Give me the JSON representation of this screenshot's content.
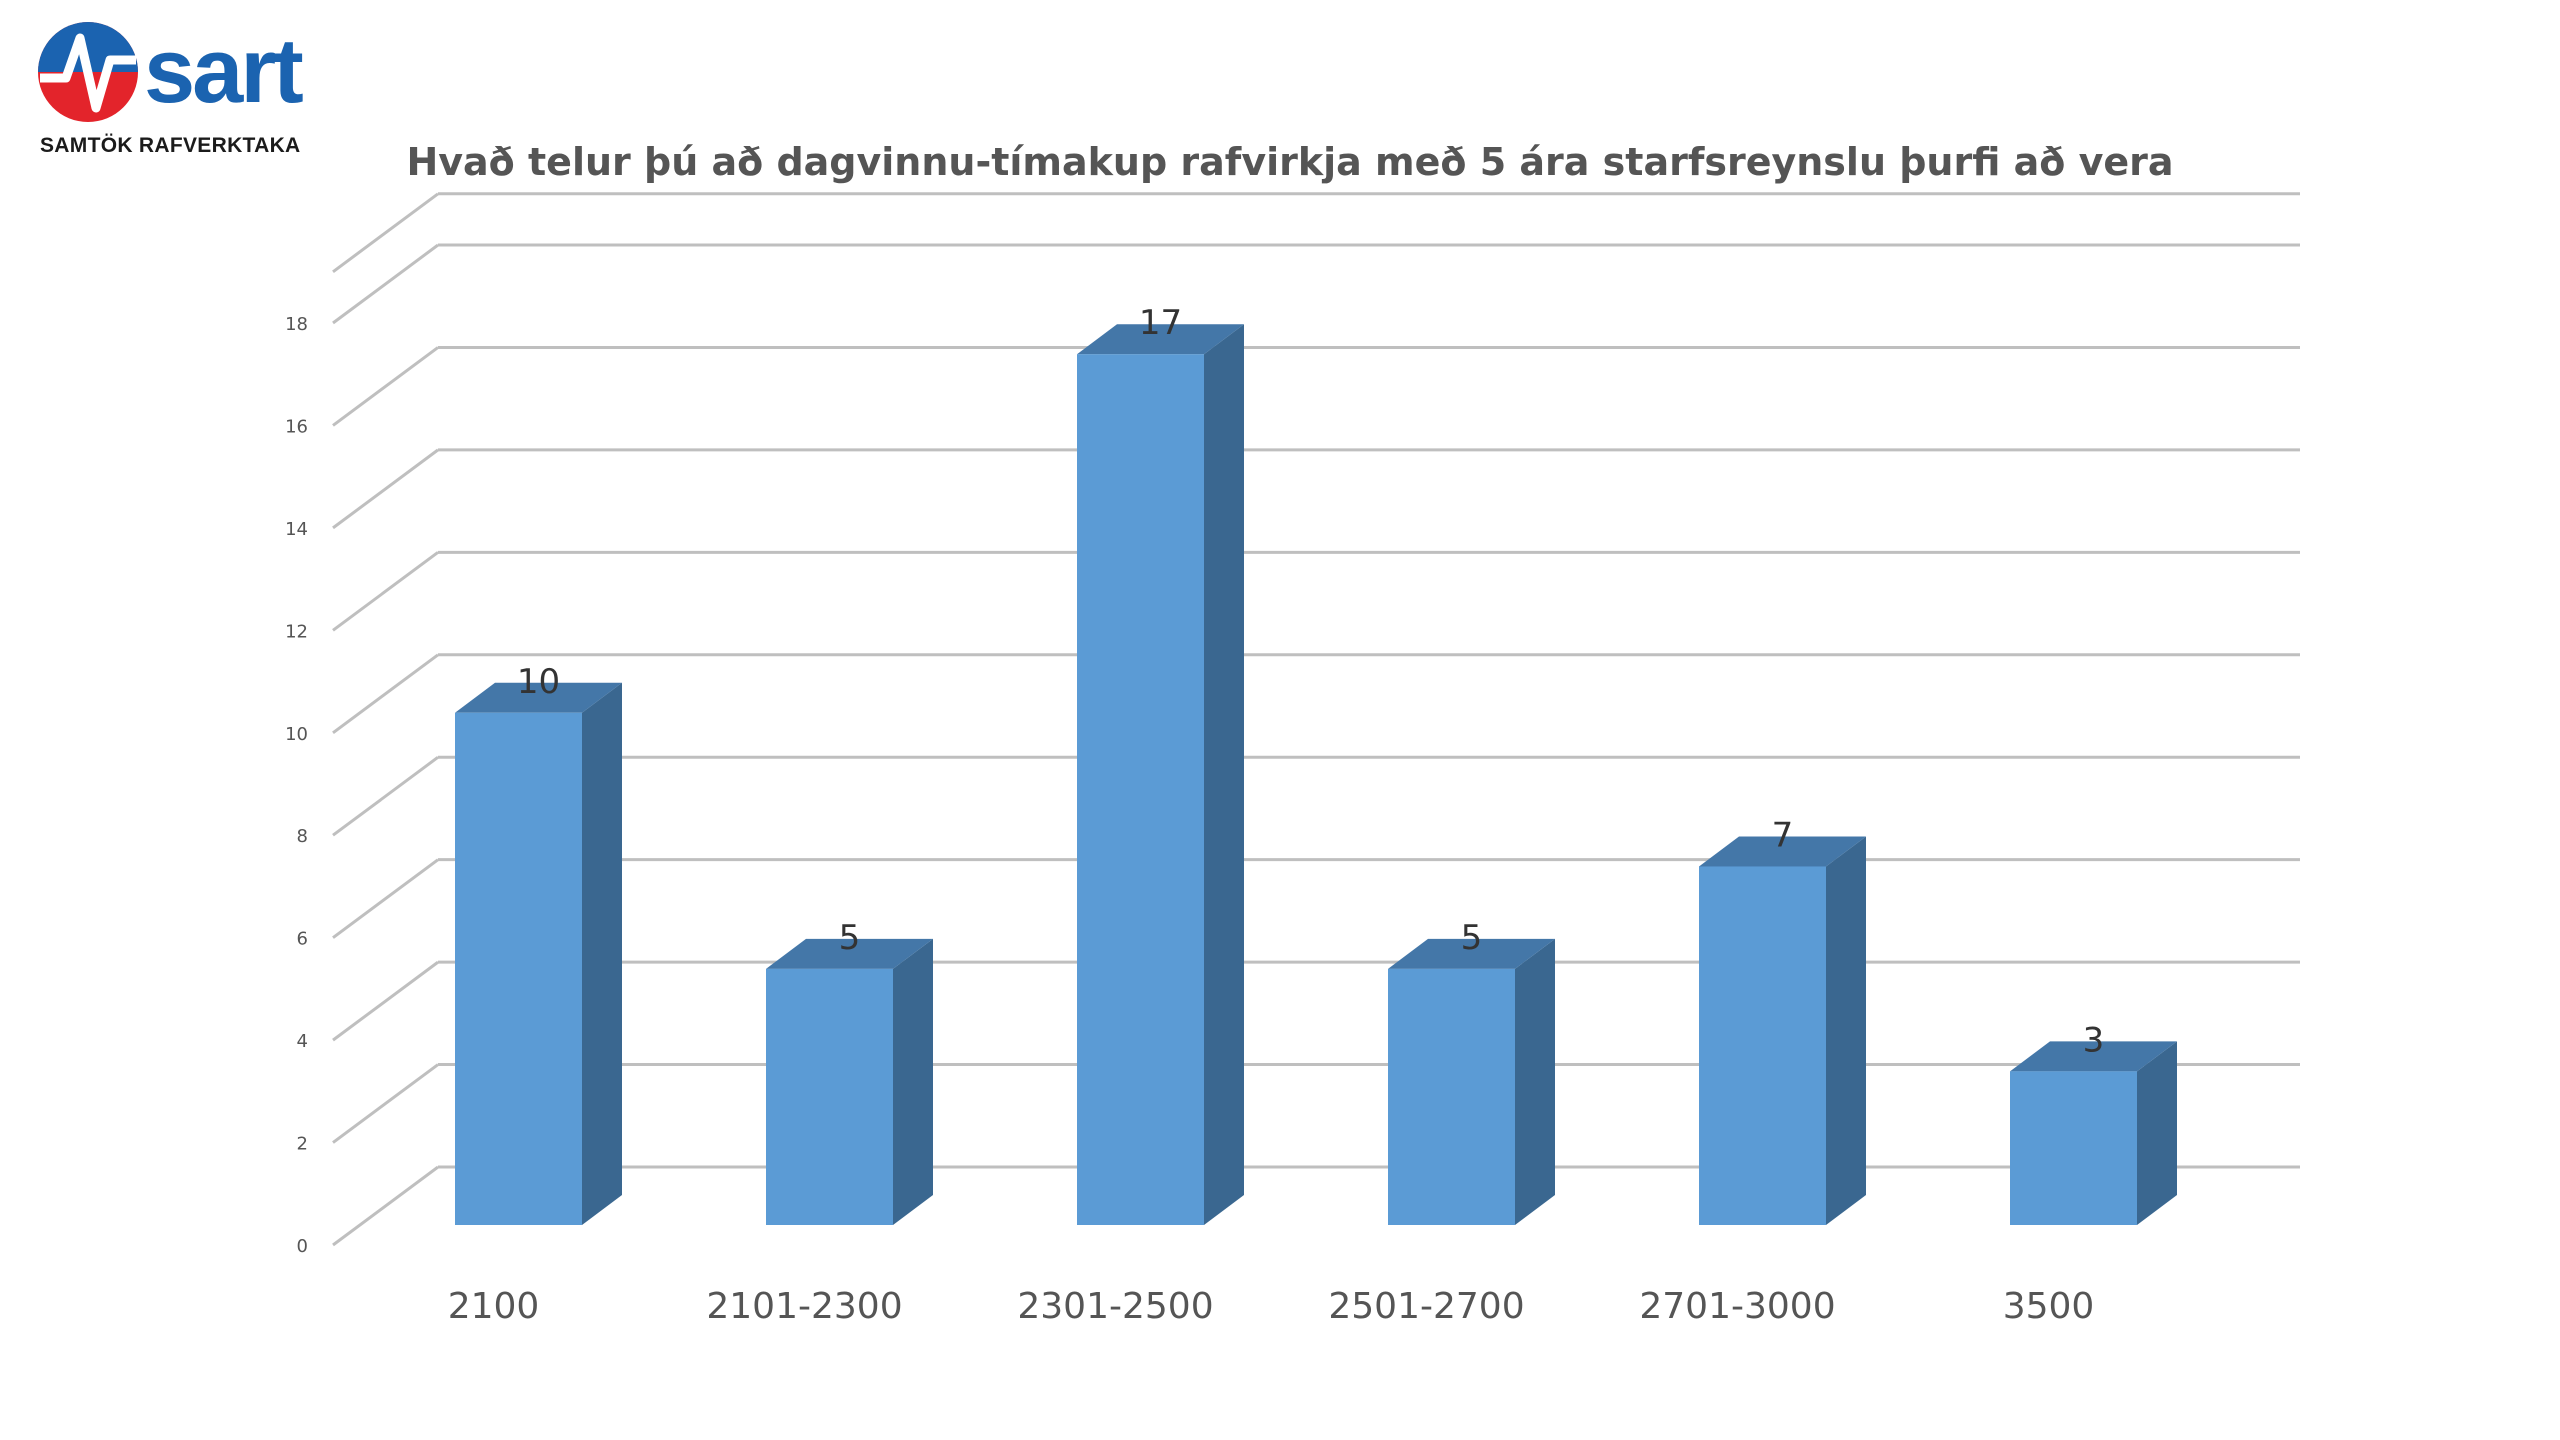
{
  "logo": {
    "brand": "sart",
    "subtitle": "SAMTÖK RAFVERKTAKA",
    "colors": {
      "red": "#e3242b",
      "blue": "#1b63b0"
    }
  },
  "chart_data": {
    "type": "bar",
    "style": "3d-column",
    "title": "Hvað telur þú að dagvinnu-tímakup rafvirkja með 5 ára starfsreynslu þurfi að vera",
    "categories": [
      "2100",
      "2101-2300",
      "2301-2500",
      "2501-2700",
      "2701-3000",
      "3500"
    ],
    "values": [
      10,
      5,
      17,
      5,
      7,
      3
    ],
    "data_labels": [
      "10",
      "5",
      "17",
      "5",
      "7",
      "3"
    ],
    "y_ticks": [
      "0",
      "2",
      "4",
      "6",
      "8",
      "10",
      "12",
      "14",
      "16",
      "18"
    ],
    "ylim": [
      0,
      19
    ],
    "xlabel": "",
    "ylabel": "",
    "grid": true,
    "legend": "none",
    "colors": {
      "bar_front": "#5b9bd5",
      "bar_side": "#3a6790",
      "bar_top": "#4477a8",
      "grid": "#bfbfbf"
    }
  }
}
